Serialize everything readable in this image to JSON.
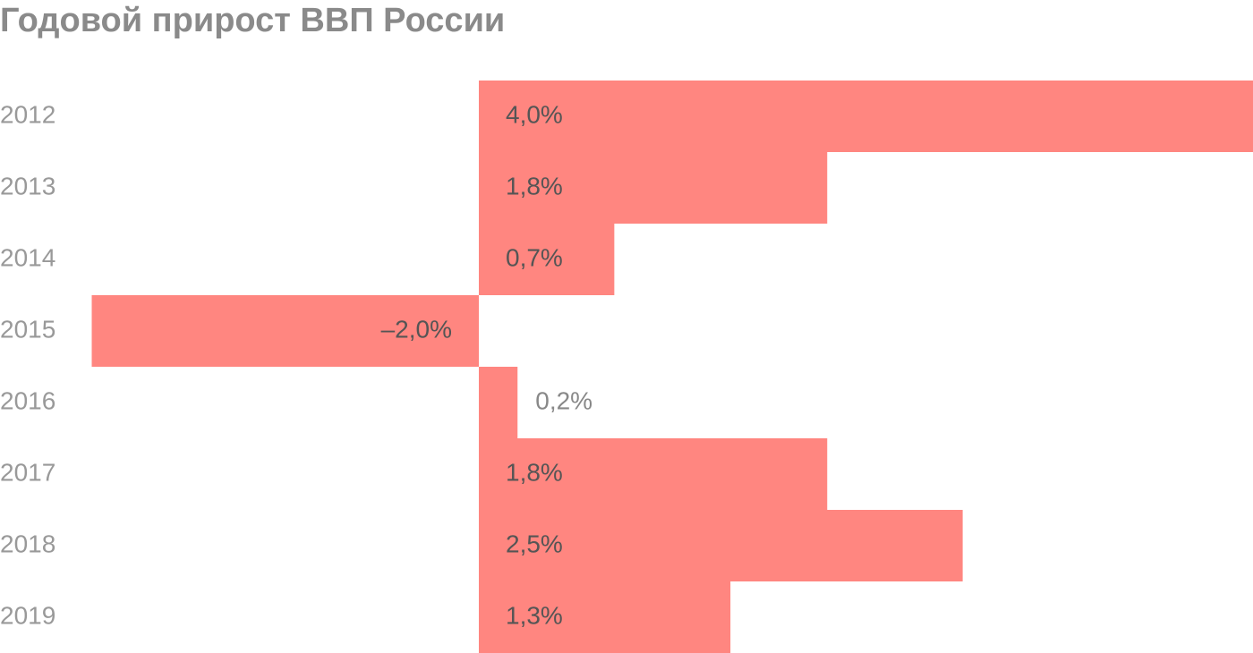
{
  "chart_data": {
    "type": "bar",
    "orientation": "horizontal",
    "title": "Годовой прирост ВВП России",
    "categories": [
      "2012",
      "2013",
      "2014",
      "2015",
      "2016",
      "2017",
      "2018",
      "2019"
    ],
    "values": [
      4.0,
      1.8,
      0.7,
      -2.0,
      0.2,
      1.8,
      2.5,
      1.3
    ],
    "value_labels": [
      "4,0%",
      "1,8%",
      "0,7%",
      "–2,0%",
      "0,2%",
      "1,8%",
      "2,5%",
      "1,3%"
    ],
    "color": "#ff8680",
    "xlim": [
      -2,
      4
    ]
  }
}
